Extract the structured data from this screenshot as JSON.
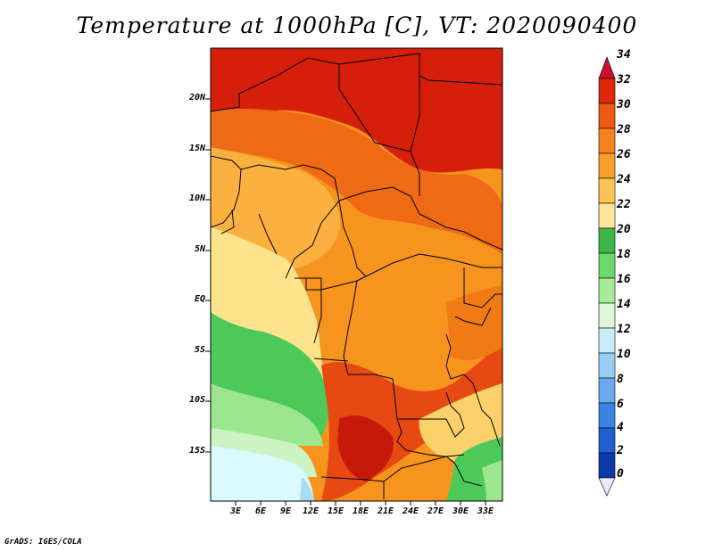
{
  "title": "Temperature at 1000hPa [C], VT: 2020090400",
  "footer": "GrADS: IGES/COLA",
  "map": {
    "lat_labels": [
      "20N",
      "15N",
      "10N",
      "5N",
      "EQ",
      "5S",
      "10S",
      "15S"
    ],
    "lon_labels": [
      "3E",
      "6E",
      "9E",
      "12E",
      "15E",
      "18E",
      "21E",
      "24E",
      "27E",
      "30E",
      "33E"
    ]
  },
  "colorbar": {
    "labels": [
      "34",
      "32",
      "30",
      "28",
      "26",
      "24",
      "22",
      "20",
      "18",
      "16",
      "14",
      "12",
      "10",
      "8",
      "6",
      "4",
      "2",
      "0"
    ],
    "colors": [
      "#a50f15",
      "#d7301f",
      "#e34a1e",
      "#f16913",
      "#f7941d",
      "#fbb040",
      "#fdd16a",
      "#fee89a",
      "#3cb54a",
      "#6cd868",
      "#a6eb9a",
      "#d4f7d0",
      "#cfefff",
      "#9fd4f7",
      "#6fb2ee",
      "#3b83e0",
      "#1f5fcf",
      "#0b3aa8",
      "#08247a"
    ],
    "under_color": "#e8e8ff",
    "over_color": "#c8102e"
  },
  "colors": {
    "land_base": "#f7941d",
    "hot": "#d61f0a",
    "warm": "#ee6a14",
    "mild": "#fbb040",
    "cool_yellow": "#fde38c",
    "green": "#4dc95a",
    "light_green": "#9be68f",
    "pale_cyan": "#d9fbff",
    "light_blue": "#a7dcf5"
  }
}
